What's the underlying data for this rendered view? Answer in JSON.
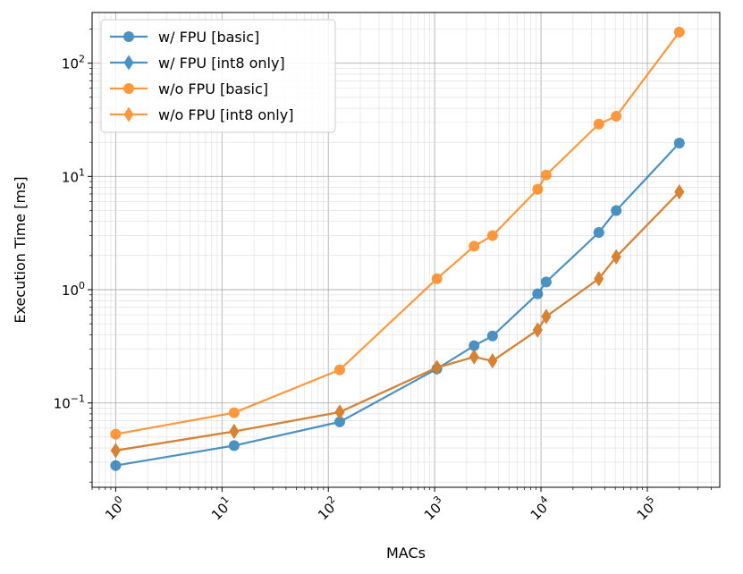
{
  "chart_data": {
    "type": "line",
    "title": "",
    "xlabel": "MACs",
    "ylabel": "Execution Time [ms]",
    "xscale": "log",
    "yscale": "log",
    "xlim": [
      0.6,
      480000
    ],
    "ylim": [
      0.018,
      280
    ],
    "grid": true,
    "legend_position": "top-left",
    "x_ticks": [
      {
        "value": 1,
        "base": "10",
        "exp": "0"
      },
      {
        "value": 10,
        "base": "10",
        "exp": "1"
      },
      {
        "value": 100,
        "base": "10",
        "exp": "2"
      },
      {
        "value": 1000,
        "base": "10",
        "exp": "3"
      },
      {
        "value": 10000,
        "base": "10",
        "exp": "4"
      },
      {
        "value": 100000,
        "base": "10",
        "exp": "5"
      }
    ],
    "y_ticks": [
      {
        "value": 0.1,
        "base": "10",
        "exp": "−1"
      },
      {
        "value": 1,
        "base": "10",
        "exp": "0"
      },
      {
        "value": 10,
        "base": "10",
        "exp": "1"
      },
      {
        "value": 100,
        "base": "10",
        "exp": "2"
      }
    ],
    "series": [
      {
        "name": "w/ FPU [basic]",
        "color": "#1f77b4",
        "marker": "circle",
        "points": [
          [
            1,
            0.028
          ],
          [
            13,
            0.042
          ],
          [
            128,
            0.068
          ],
          [
            1050,
            0.2
          ],
          [
            2350,
            0.32
          ],
          [
            3500,
            0.39
          ],
          [
            9300,
            0.92
          ],
          [
            11200,
            1.17
          ],
          [
            35000,
            3.2
          ],
          [
            51000,
            5.0
          ],
          [
            200000,
            19.7
          ]
        ]
      },
      {
        "name": "w/ FPU [int8 only]",
        "color": "#1f77b4",
        "marker": "diamond",
        "points": [
          [
            1,
            0.038
          ],
          [
            13,
            0.056
          ],
          [
            128,
            0.083
          ],
          [
            1050,
            0.205
          ],
          [
            2350,
            0.255
          ],
          [
            3500,
            0.235
          ],
          [
            9300,
            0.44
          ],
          [
            11200,
            0.58
          ],
          [
            35000,
            1.25
          ],
          [
            51000,
            1.95
          ],
          [
            200000,
            7.3
          ]
        ]
      },
      {
        "name": "w/o FPU [basic]",
        "color": "#ff7f0e",
        "marker": "circle",
        "points": [
          [
            1,
            0.053
          ],
          [
            13,
            0.082
          ],
          [
            128,
            0.196
          ],
          [
            1050,
            1.25
          ],
          [
            2350,
            2.42
          ],
          [
            3500,
            3.0
          ],
          [
            9300,
            7.7
          ],
          [
            11200,
            10.3
          ],
          [
            35000,
            29
          ],
          [
            51000,
            34
          ],
          [
            200000,
            188
          ]
        ]
      },
      {
        "name": "w/o FPU [int8 only]",
        "color": "#ff7f0e",
        "marker": "diamond",
        "points": [
          [
            1,
            0.038
          ],
          [
            13,
            0.056
          ],
          [
            128,
            0.083
          ],
          [
            1050,
            0.205
          ],
          [
            2350,
            0.255
          ],
          [
            3500,
            0.235
          ],
          [
            9300,
            0.44
          ],
          [
            11200,
            0.58
          ],
          [
            35000,
            1.25
          ],
          [
            51000,
            1.95
          ],
          [
            200000,
            7.3
          ]
        ]
      }
    ]
  }
}
